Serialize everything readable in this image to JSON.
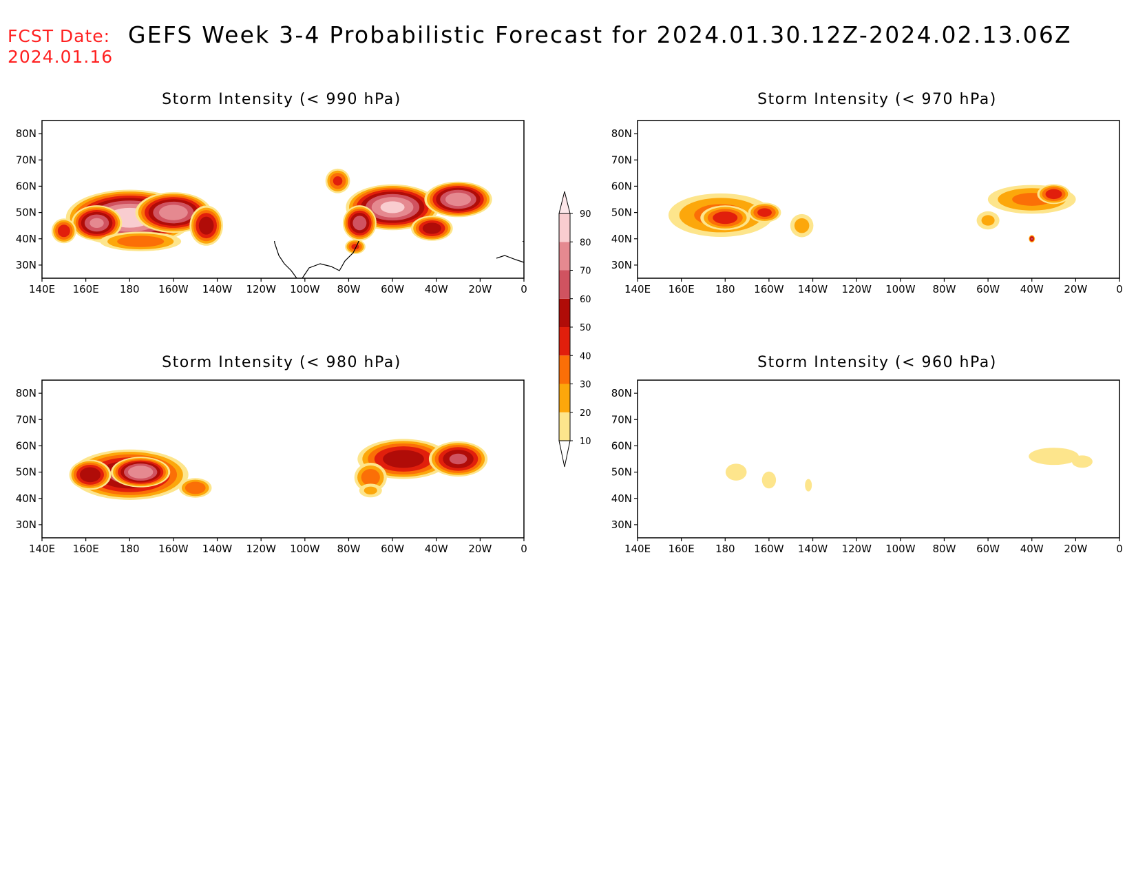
{
  "header": {
    "fcst_label": "FCST Date:",
    "fcst_date": "2024.01.16",
    "title": "GEFS Week 3-4 Probabilistic Forecast for 2024.01.30.12Z-2024.02.13.06Z"
  },
  "axes": {
    "lon_ticks": [
      "140E",
      "160E",
      "180",
      "160W",
      "140W",
      "120W",
      "100W",
      "80W",
      "60W",
      "40W",
      "20W",
      "0"
    ],
    "lat_ticks": [
      "80N",
      "70N",
      "60N",
      "50N",
      "40N",
      "30N"
    ]
  },
  "colorbar": {
    "levels": [
      "10",
      "20",
      "30",
      "40",
      "50",
      "60",
      "70",
      "80",
      "90"
    ],
    "colors": [
      "#fff7bf",
      "#fde58c",
      "#fca70b",
      "#fb6f07",
      "#e11f0c",
      "#b00c08",
      "#d05360",
      "#e58990",
      "#f9cdd0",
      "#fde7ea"
    ]
  },
  "panels": [
    {
      "title": "Storm Intensity (< 990 hPa)",
      "position": "top-left",
      "blobs": [
        {
          "lon": 180,
          "lat": 48,
          "rlon": 30,
          "rlat": 11,
          "p": 85
        },
        {
          "lon": 165,
          "lat": 46,
          "rlon": 12,
          "rlat": 7,
          "p": 70
        },
        {
          "lon": 200,
          "lat": 50,
          "rlon": 18,
          "rlat": 8,
          "p": 75
        },
        {
          "lon": 215,
          "lat": 45,
          "rlon": 8,
          "rlat": 8,
          "p": 55
        },
        {
          "lon": 150,
          "lat": 43,
          "rlon": 6,
          "rlat": 5,
          "p": 45
        },
        {
          "lon": 185,
          "lat": 39,
          "rlon": 20,
          "rlat": 4,
          "p": 35
        },
        {
          "lon": 300,
          "lat": 52,
          "rlon": 22,
          "rlat": 9,
          "p": 80
        },
        {
          "lon": 330,
          "lat": 55,
          "rlon": 16,
          "rlat": 7,
          "p": 75
        },
        {
          "lon": 285,
          "lat": 46,
          "rlon": 8,
          "rlat": 7,
          "p": 65
        },
        {
          "lon": 318,
          "lat": 44,
          "rlon": 10,
          "rlat": 5,
          "p": 55
        },
        {
          "lon": 275,
          "lat": 62,
          "rlon": 6,
          "rlat": 5,
          "p": 40
        },
        {
          "lon": 283,
          "lat": 37,
          "rlon": 5,
          "rlat": 3,
          "p": 40
        }
      ]
    },
    {
      "title": "Storm Intensity (< 970 hPa)",
      "position": "top-right",
      "blobs": [
        {
          "lon": 178,
          "lat": 49,
          "rlon": 26,
          "rlat": 9,
          "p": 32
        },
        {
          "lon": 180,
          "lat": 48,
          "rlon": 12,
          "rlat": 5,
          "p": 45
        },
        {
          "lon": 198,
          "lat": 50,
          "rlon": 8,
          "rlat": 4,
          "p": 42
        },
        {
          "lon": 215,
          "lat": 45,
          "rlon": 6,
          "rlat": 5,
          "p": 22
        },
        {
          "lon": 320,
          "lat": 55,
          "rlon": 22,
          "rlat": 6,
          "p": 30
        },
        {
          "lon": 330,
          "lat": 57,
          "rlon": 8,
          "rlat": 4,
          "p": 45
        },
        {
          "lon": 300,
          "lat": 47,
          "rlon": 6,
          "rlat": 4,
          "p": 20
        },
        {
          "lon": 320,
          "lat": 40,
          "rlon": 1.5,
          "rlat": 1.5,
          "p": 60
        }
      ]
    },
    {
      "title": "Storm Intensity (< 980 hPa)",
      "position": "bottom-left",
      "blobs": [
        {
          "lon": 180,
          "lat": 49,
          "rlon": 28,
          "rlat": 10,
          "p": 62
        },
        {
          "lon": 185,
          "lat": 50,
          "rlon": 14,
          "rlat": 6,
          "p": 78
        },
        {
          "lon": 162,
          "lat": 49,
          "rlon": 10,
          "rlat": 6,
          "p": 58
        },
        {
          "lon": 210,
          "lat": 44,
          "rlon": 8,
          "rlat": 4,
          "p": 38
        },
        {
          "lon": 305,
          "lat": 55,
          "rlon": 22,
          "rlat": 8,
          "p": 55
        },
        {
          "lon": 330,
          "lat": 55,
          "rlon": 14,
          "rlat": 7,
          "p": 60
        },
        {
          "lon": 290,
          "lat": 48,
          "rlon": 8,
          "rlat": 6,
          "p": 35
        },
        {
          "lon": 290,
          "lat": 43,
          "rlon": 6,
          "rlat": 3,
          "p": 20
        }
      ]
    },
    {
      "title": "Storm Intensity (< 960 hPa)",
      "position": "bottom-right",
      "blobs": [
        {
          "lon": 185,
          "lat": 50,
          "rlon": 6,
          "rlat": 4,
          "p": 14
        },
        {
          "lon": 200,
          "lat": 47,
          "rlon": 4,
          "rlat": 4,
          "p": 14
        },
        {
          "lon": 218,
          "lat": 45,
          "rlon": 2,
          "rlat": 3,
          "p": 13
        },
        {
          "lon": 330,
          "lat": 56,
          "rlon": 14,
          "rlat": 4,
          "p": 15
        },
        {
          "lon": 343,
          "lat": 54,
          "rlon": 6,
          "rlat": 3,
          "p": 13
        }
      ]
    }
  ]
}
